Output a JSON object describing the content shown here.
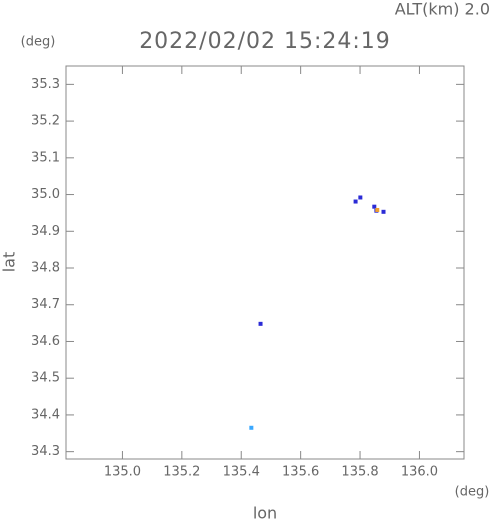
{
  "chart_data": {
    "type": "scatter",
    "title": "2022/02/02 15:24:19",
    "annotation": "ALT(km) 2.0",
    "x_label": "lon",
    "y_label": "lat",
    "x_unit": "(deg)",
    "y_unit": "(deg)",
    "xlim": [
      134.81,
      136.15
    ],
    "ylim": [
      34.28,
      35.35
    ],
    "xticks": [
      {
        "value": 135.0,
        "label": "135.0"
      },
      135.2,
      135.4,
      135.6,
      135.8,
      {
        "value": 136.0,
        "label": "136.0"
      }
    ],
    "yticks": [
      34.3,
      34.4,
      34.5,
      34.6,
      34.7,
      34.8,
      34.9,
      {
        "value": 35.0,
        "label": "35.0"
      },
      35.1,
      35.2,
      35.3
    ],
    "series": [
      {
        "color": "#2b2bd6",
        "x": [
          135.785,
          135.801,
          135.848,
          135.855,
          135.879,
          135.465
        ],
        "values": [
          34.981,
          34.992,
          34.967,
          34.956,
          34.953,
          34.648
        ]
      },
      {
        "color": "#f0a030",
        "x": [
          135.858
        ],
        "values": [
          34.958
        ]
      },
      {
        "color": "#3aa8ff",
        "x": [
          135.434
        ],
        "values": [
          34.365
        ]
      }
    ]
  }
}
